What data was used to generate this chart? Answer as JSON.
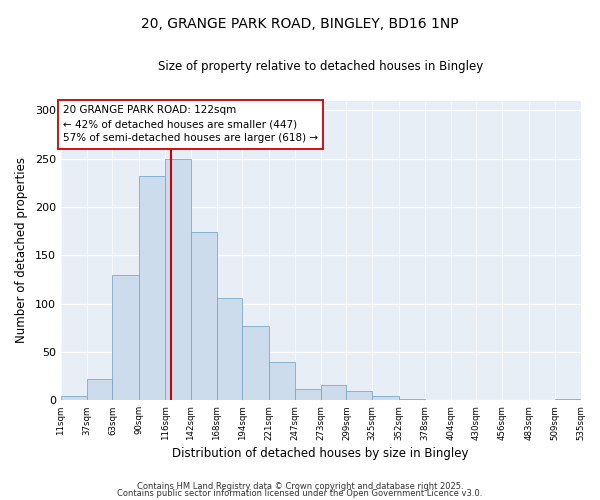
{
  "title": "20, GRANGE PARK ROAD, BINGLEY, BD16 1NP",
  "subtitle": "Size of property relative to detached houses in Bingley",
  "xlabel": "Distribution of detached houses by size in Bingley",
  "ylabel": "Number of detached properties",
  "bar_color": "#ccdcec",
  "bar_edge_color": "#7aaacb",
  "fig_background": "#ffffff",
  "ax_background": "#e8eef5",
  "grid_color": "#ffffff",
  "bins": [
    11,
    37,
    63,
    90,
    116,
    142,
    168,
    194,
    221,
    247,
    273,
    299,
    325,
    352,
    378,
    404,
    430,
    456,
    483,
    509,
    535
  ],
  "counts": [
    4,
    22,
    130,
    232,
    250,
    174,
    106,
    77,
    40,
    12,
    16,
    10,
    4,
    1,
    0,
    0,
    0,
    0,
    0,
    1
  ],
  "property_size": 122,
  "vline_color": "#cc0000",
  "annotation_line1": "20 GRANGE PARK ROAD: 122sqm",
  "annotation_line2": "← 42% of detached houses are smaller (447)",
  "annotation_line3": "57% of semi-detached houses are larger (618) →",
  "annotation_box_color": "#ffffff",
  "annotation_box_edge": "#cc0000",
  "ylim": [
    0,
    310
  ],
  "yticks": [
    0,
    50,
    100,
    150,
    200,
    250,
    300
  ],
  "footer1": "Contains HM Land Registry data © Crown copyright and database right 2025.",
  "footer2": "Contains public sector information licensed under the Open Government Licence v3.0.",
  "tick_labels": [
    "11sqm",
    "37sqm",
    "63sqm",
    "90sqm",
    "116sqm",
    "142sqm",
    "168sqm",
    "194sqm",
    "221sqm",
    "247sqm",
    "273sqm",
    "299sqm",
    "325sqm",
    "352sqm",
    "378sqm",
    "404sqm",
    "430sqm",
    "456sqm",
    "483sqm",
    "509sqm",
    "535sqm"
  ]
}
